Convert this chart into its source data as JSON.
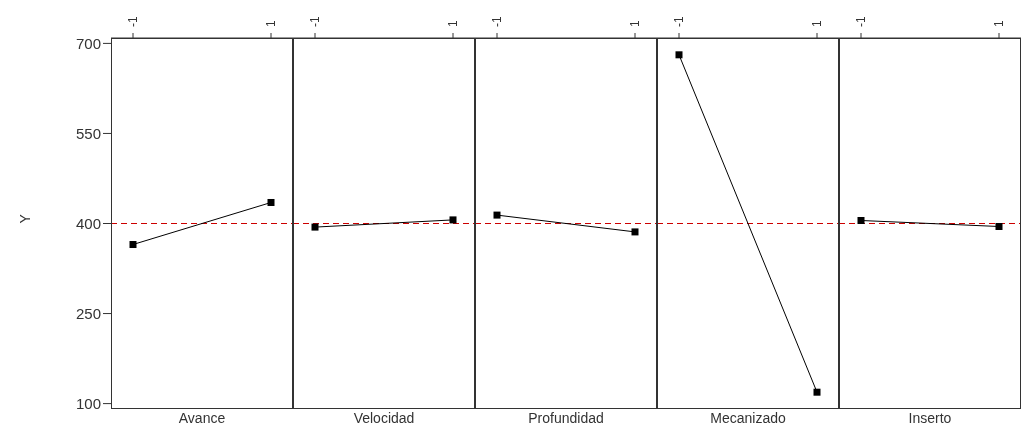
{
  "chart_data": [
    {
      "type": "line",
      "xlabel": "Avance",
      "ylabel": "Y",
      "categories": [
        "-1",
        "1"
      ],
      "ylim": [
        91,
        709
      ],
      "yticks": [
        100,
        250,
        400,
        550,
        700
      ],
      "marker": "square",
      "grid": false,
      "series": [
        {
          "color": "#000000",
          "values": [
            365,
            435
          ]
        }
      ],
      "ref_lines": [
        {
          "axis": "y",
          "value": 400,
          "color": "#cc0000",
          "line_style": "dashed"
        }
      ]
    },
    {
      "type": "line",
      "xlabel": "Velocidad",
      "categories": [
        "-1",
        "1"
      ],
      "ylim": [
        91,
        709
      ],
      "yticks": [
        100,
        250,
        400,
        550,
        700
      ],
      "tick_labels": "x",
      "marker": "square",
      "grid": false,
      "series": [
        {
          "color": "#000000",
          "values": [
            394,
            406
          ]
        }
      ],
      "ref_lines": [
        {
          "axis": "y",
          "value": 400,
          "color": "#cc0000",
          "line_style": "dashed"
        }
      ]
    },
    {
      "type": "line",
      "xlabel": "Profundidad",
      "categories": [
        "-1",
        "1"
      ],
      "ylim": [
        91,
        709
      ],
      "yticks": [
        100,
        250,
        400,
        550,
        700
      ],
      "tick_labels": "x",
      "marker": "square",
      "grid": false,
      "series": [
        {
          "color": "#000000",
          "values": [
            414,
            386
          ]
        }
      ],
      "ref_lines": [
        {
          "axis": "y",
          "value": 400,
          "color": "#cc0000",
          "line_style": "dashed"
        }
      ]
    },
    {
      "type": "line",
      "xlabel": "Mecanizado",
      "categories": [
        "-1",
        "1"
      ],
      "ylim": [
        91,
        709
      ],
      "yticks": [
        100,
        250,
        400,
        550,
        700
      ],
      "tick_labels": "x",
      "marker": "square",
      "grid": false,
      "series": [
        {
          "color": "#000000",
          "values": [
            681,
            119
          ]
        }
      ],
      "ref_lines": [
        {
          "axis": "y",
          "value": 400,
          "color": "#cc0000",
          "line_style": "dashed"
        }
      ]
    },
    {
      "type": "line",
      "xlabel": "Inserto",
      "categories": [
        "-1",
        "1"
      ],
      "ylim": [
        91,
        709
      ],
      "yticks": [
        100,
        250,
        400,
        550,
        700
      ],
      "tick_labels": "x",
      "marker": "square",
      "grid": false,
      "series": [
        {
          "color": "#000000",
          "values": [
            405,
            395
          ]
        }
      ],
      "ref_lines": [
        {
          "axis": "y",
          "value": 400,
          "color": "#cc0000",
          "line_style": "dashed"
        }
      ]
    }
  ]
}
